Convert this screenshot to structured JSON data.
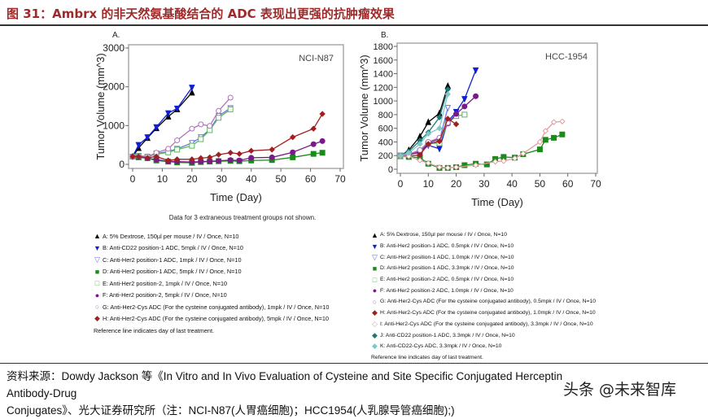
{
  "title": "图 31：Ambrx 的非天然氨基酸结合的 ADC 表现出更强的抗肿瘤效果",
  "chart_data": [
    {
      "type": "line",
      "panel": "A.",
      "annotation": "NCI-N87",
      "xlabel": "Time (Day)",
      "ylabel": "Tumor Volume (mm^3)",
      "xlim": [
        0,
        70
      ],
      "ylim": [
        0,
        3000
      ],
      "xticks": [
        0,
        10,
        20,
        30,
        40,
        50,
        60,
        70
      ],
      "yticks": [
        0,
        1000,
        2000,
        3000
      ],
      "note": "Data for 3 extraneous treatment groups not shown.",
      "series": [
        {
          "name": "A",
          "color": "#000000",
          "marker": "triangle",
          "fill": true,
          "points": [
            [
              0,
              200
            ],
            [
              2,
              420
            ],
            [
              5,
              680
            ],
            [
              8,
              930
            ],
            [
              12,
              1230
            ],
            [
              15,
              1420
            ],
            [
              20,
              1850
            ]
          ]
        },
        {
          "name": "B",
          "color": "#1020d0",
          "marker": "triangle-down",
          "fill": true,
          "points": [
            [
              0,
              200
            ],
            [
              2,
              500
            ],
            [
              5,
              700
            ],
            [
              8,
              960
            ],
            [
              12,
              1320
            ],
            [
              15,
              1440
            ],
            [
              20,
              1980
            ]
          ]
        },
        {
          "name": "C",
          "color": "#6a78e0",
          "marker": "triangle-down",
          "fill": false,
          "points": [
            [
              0,
              200
            ],
            [
              2,
              220
            ],
            [
              5,
              200
            ],
            [
              8,
              280
            ],
            [
              12,
              330
            ],
            [
              15,
              400
            ],
            [
              20,
              550
            ],
            [
              23,
              700
            ],
            [
              26,
              900
            ],
            [
              29,
              1250
            ],
            [
              33,
              1450
            ]
          ]
        },
        {
          "name": "D",
          "color": "#1a8a1a",
          "marker": "square",
          "fill": true,
          "points": [
            [
              0,
              200
            ],
            [
              2,
              180
            ],
            [
              5,
              160
            ],
            [
              8,
              100
            ],
            [
              12,
              70
            ],
            [
              15,
              50
            ],
            [
              20,
              40
            ],
            [
              23,
              60
            ],
            [
              26,
              70
            ],
            [
              29,
              80
            ],
            [
              33,
              90
            ],
            [
              36,
              80
            ],
            [
              40,
              100
            ],
            [
              47,
              110
            ],
            [
              54,
              180
            ],
            [
              61,
              270
            ],
            [
              64,
              300
            ]
          ]
        },
        {
          "name": "E",
          "color": "#5cb85c",
          "marker": "square",
          "fill": false,
          "points": [
            [
              0,
              200
            ],
            [
              2,
              220
            ],
            [
              5,
              200
            ],
            [
              8,
              260
            ],
            [
              12,
              310
            ],
            [
              15,
              380
            ],
            [
              20,
              480
            ],
            [
              23,
              650
            ],
            [
              26,
              880
            ],
            [
              29,
              1200
            ],
            [
              33,
              1420
            ]
          ]
        },
        {
          "name": "F",
          "color": "#7a1a8a",
          "marker": "circle",
          "fill": true,
          "points": [
            [
              0,
              200
            ],
            [
              2,
              190
            ],
            [
              5,
              160
            ],
            [
              8,
              120
            ],
            [
              12,
              80
            ],
            [
              15,
              70
            ],
            [
              20,
              60
            ],
            [
              23,
              70
            ],
            [
              26,
              80
            ],
            [
              29,
              90
            ],
            [
              33,
              110
            ],
            [
              36,
              100
            ],
            [
              40,
              170
            ],
            [
              47,
              180
            ],
            [
              54,
              310
            ],
            [
              61,
              520
            ],
            [
              64,
              600
            ]
          ]
        },
        {
          "name": "G",
          "color": "#b070c0",
          "marker": "circle",
          "fill": false,
          "points": [
            [
              0,
              200
            ],
            [
              2,
              210
            ],
            [
              5,
              200
            ],
            [
              8,
              300
            ],
            [
              12,
              400
            ],
            [
              15,
              620
            ],
            [
              20,
              920
            ],
            [
              23,
              1030
            ],
            [
              26,
              990
            ],
            [
              29,
              1380
            ],
            [
              33,
              1720
            ]
          ]
        },
        {
          "name": "H",
          "color": "#a02020",
          "marker": "diamond",
          "fill": true,
          "points": [
            [
              0,
              200
            ],
            [
              2,
              200
            ],
            [
              5,
              170
            ],
            [
              8,
              200
            ],
            [
              12,
              100
            ],
            [
              15,
              130
            ],
            [
              20,
              130
            ],
            [
              23,
              160
            ],
            [
              26,
              180
            ],
            [
              29,
              250
            ],
            [
              33,
              300
            ],
            [
              36,
              270
            ],
            [
              40,
              350
            ],
            [
              47,
              380
            ],
            [
              54,
              700
            ],
            [
              61,
              920
            ],
            [
              64,
              1300
            ]
          ]
        }
      ]
    },
    {
      "type": "line",
      "panel": "B.",
      "annotation": "HCC-1954",
      "xlabel": "Time (Day)",
      "ylabel": "Tumor Volume (mm^3)",
      "xlim": [
        0,
        70
      ],
      "ylim": [
        0,
        1800
      ],
      "xticks": [
        0,
        10,
        20,
        30,
        40,
        50,
        60,
        70
      ],
      "yticks": [
        0,
        200,
        400,
        600,
        800,
        1000,
        1200,
        1400,
        1600,
        1800
      ],
      "series": [
        {
          "name": "A",
          "color": "#000000",
          "marker": "triangle",
          "fill": true,
          "points": [
            [
              0,
              190
            ],
            [
              3,
              280
            ],
            [
              7,
              480
            ],
            [
              10,
              690
            ],
            [
              14,
              820
            ],
            [
              17,
              1220
            ]
          ]
        },
        {
          "name": "B",
          "color": "#1020d0",
          "marker": "triangle-down",
          "fill": true,
          "points": [
            [
              0,
              200
            ],
            [
              3,
              230
            ],
            [
              7,
              240
            ],
            [
              10,
              350
            ],
            [
              14,
              300
            ],
            [
              17,
              700
            ],
            [
              20,
              840
            ],
            [
              23,
              1030
            ],
            [
              27,
              1450
            ]
          ]
        },
        {
          "name": "C",
          "color": "#6a78e0",
          "marker": "triangle-down",
          "fill": false,
          "points": [
            [
              0,
              200
            ],
            [
              3,
              220
            ],
            [
              7,
              260
            ],
            [
              10,
              360
            ],
            [
              14,
              420
            ],
            [
              17,
              900
            ]
          ]
        },
        {
          "name": "D",
          "color": "#1a8a1a",
          "marker": "square",
          "fill": true,
          "points": [
            [
              0,
              190
            ],
            [
              3,
              180
            ],
            [
              7,
              170
            ],
            [
              10,
              80
            ],
            [
              14,
              20
            ],
            [
              17,
              20
            ],
            [
              20,
              30
            ],
            [
              23,
              60
            ],
            [
              27,
              80
            ],
            [
              31,
              70
            ],
            [
              34,
              150
            ],
            [
              37,
              180
            ],
            [
              41,
              170
            ],
            [
              44,
              220
            ],
            [
              50,
              290
            ],
            [
              52,
              430
            ],
            [
              55,
              460
            ],
            [
              58,
              510
            ]
          ]
        },
        {
          "name": "E",
          "color": "#5cb85c",
          "marker": "square",
          "fill": false,
          "points": [
            [
              0,
              200
            ],
            [
              3,
              210
            ],
            [
              7,
              250
            ],
            [
              10,
              380
            ],
            [
              14,
              380
            ],
            [
              17,
              680
            ],
            [
              20,
              780
            ],
            [
              23,
              800
            ]
          ]
        },
        {
          "name": "F",
          "color": "#7a1a8a",
          "marker": "circle",
          "fill": true,
          "points": [
            [
              0,
              200
            ],
            [
              3,
              210
            ],
            [
              7,
              250
            ],
            [
              10,
              380
            ],
            [
              14,
              450
            ],
            [
              17,
              670
            ],
            [
              20,
              810
            ],
            [
              23,
              920
            ],
            [
              27,
              1070
            ]
          ]
        },
        {
          "name": "G",
          "color": "#b070c0",
          "marker": "circle",
          "fill": false,
          "points": [
            [
              0,
              200
            ],
            [
              3,
              220
            ],
            [
              7,
              280
            ],
            [
              10,
              400
            ],
            [
              14,
              460
            ],
            [
              17,
              680
            ]
          ]
        },
        {
          "name": "H",
          "color": "#a02020",
          "marker": "diamond",
          "fill": true,
          "points": [
            [
              0,
              200
            ],
            [
              3,
              190
            ],
            [
              7,
              210
            ],
            [
              10,
              370
            ],
            [
              14,
              410
            ],
            [
              17,
              740
            ],
            [
              20,
              660
            ]
          ]
        },
        {
          "name": "I",
          "color": "#e0a0a0",
          "marker": "diamond",
          "fill": false,
          "points": [
            [
              0,
              190
            ],
            [
              3,
              190
            ],
            [
              7,
              130
            ],
            [
              10,
              90
            ],
            [
              14,
              30
            ],
            [
              17,
              20
            ],
            [
              20,
              30
            ],
            [
              27,
              60
            ],
            [
              34,
              110
            ],
            [
              37,
              120
            ],
            [
              41,
              160
            ],
            [
              44,
              230
            ],
            [
              50,
              400
            ],
            [
              52,
              560
            ],
            [
              55,
              690
            ],
            [
              58,
              700
            ]
          ]
        },
        {
          "name": "J",
          "color": "#1a7a7a",
          "marker": "diamond",
          "fill": true,
          "points": [
            [
              0,
              200
            ],
            [
              3,
              260
            ],
            [
              7,
              420
            ],
            [
              10,
              540
            ],
            [
              14,
              760
            ],
            [
              17,
              1170
            ]
          ]
        },
        {
          "name": "K",
          "color": "#80c8c8",
          "marker": "diamond",
          "fill": true,
          "points": [
            [
              0,
              200
            ],
            [
              3,
              240
            ],
            [
              7,
              370
            ],
            [
              10,
              520
            ],
            [
              14,
              600
            ],
            [
              17,
              1100
            ]
          ]
        }
      ]
    }
  ],
  "legendA": [
    {
      "sym": "▲",
      "color": "#000",
      "text": "A: 5% Dextrose, 150µl per mouse / IV / Once, N=10"
    },
    {
      "sym": "▼",
      "color": "#1020d0",
      "text": "B: Anti-CD22 position-1 ADC, 5mpk / IV / Once, N=10"
    },
    {
      "sym": "▽",
      "color": "#6a78e0",
      "text": "C: Anti-Her2 position-1 ADC, 1mpk / IV / Once, N=10"
    },
    {
      "sym": "■",
      "color": "#1a8a1a",
      "text": "D: Anti-Her2 position-1 ADC, 5mpk / IV / Once, N=10"
    },
    {
      "sym": "□",
      "color": "#5cb85c",
      "text": "E: Anti-Her2 position-2, 1mpk / IV / Once, N=10"
    },
    {
      "sym": "●",
      "color": "#7a1a8a",
      "text": "F: Anti-Her2 position-2, 5mpk / IV / Once, N=10"
    },
    {
      "sym": "○",
      "color": "#b070c0",
      "text": "G: Anti-Her2-Cys ADC (For the cysteine conjugated antibody), 1mpk / IV / Once, N=10"
    },
    {
      "sym": "◆",
      "color": "#a02020",
      "text": "H: Anti-Her2-Cys ADC (For the cysteine conjugated antibody), 5mpk / IV / Once, N=10"
    }
  ],
  "legendA_note": "Reference line indicates day of last treatment.",
  "legendB": [
    {
      "sym": "▲",
      "color": "#000",
      "text": "A: 5% Dextrose, 150µl per mouse / IV / Once, N=10"
    },
    {
      "sym": "▼",
      "color": "#1020d0",
      "text": "B: Anti-Her2 position-1 ADC, 0.5mpk / IV / Once, N=10"
    },
    {
      "sym": "▽",
      "color": "#6a78e0",
      "text": "C: Anti-Her2 position-1 ADC, 1.0mpk / IV / Once, N=10"
    },
    {
      "sym": "■",
      "color": "#1a8a1a",
      "text": "D: Anti-Her2 position-1 ADC, 3.3mpk / IV / Once, N=10"
    },
    {
      "sym": "□",
      "color": "#5cb85c",
      "text": "E: Anti-Her2 position-2 ADC, 0.5mpk / IV / Once, N=10"
    },
    {
      "sym": "●",
      "color": "#7a1a8a",
      "text": "F: Anti-Her2 position-2 ADC, 1.0mpk / IV / Once, N=10"
    },
    {
      "sym": "○",
      "color": "#b070c0",
      "text": "G: Anti-Her2-Cys ADC (For the cysteine conjugated antibody), 0.5mpk / IV / Once, N=10"
    },
    {
      "sym": "◆",
      "color": "#a02020",
      "text": "H: Anti-Her2-Cys ADC (For the cysteine conjugated antibody), 1.0mpk / IV / Once, N=10"
    },
    {
      "sym": "◇",
      "color": "#e0a0a0",
      "text": "I: Anti-Her2-Cys ADC (For the cysteine conjugated antibody), 3.3mpk / IV / Once, N=10"
    },
    {
      "sym": "◆",
      "color": "#1a7a7a",
      "text": "J: Anti-CD22 position-1 ADC, 3.3mpk / IV / Once, N=10"
    },
    {
      "sym": "◆",
      "color": "#80c8c8",
      "text": "K: Anti-CD22-Cys ADC, 3.3mpk / IV / Once, N=10"
    }
  ],
  "legendB_note": "Reference line indicates day of last treatment.",
  "footer": {
    "line1": "资料来源：Dowdy Jackson 等《In Vitro and In Vivo Evaluation of Cysteine and Site Specific Conjugated Herceptin Antibody-Drug",
    "line2": "Conjugates》、光大证券研究所（注：NCI-N87(人胃癌细胞)；HCC1954(人乳腺导管癌细胞);)"
  },
  "watermark": "头条 @未来智库"
}
